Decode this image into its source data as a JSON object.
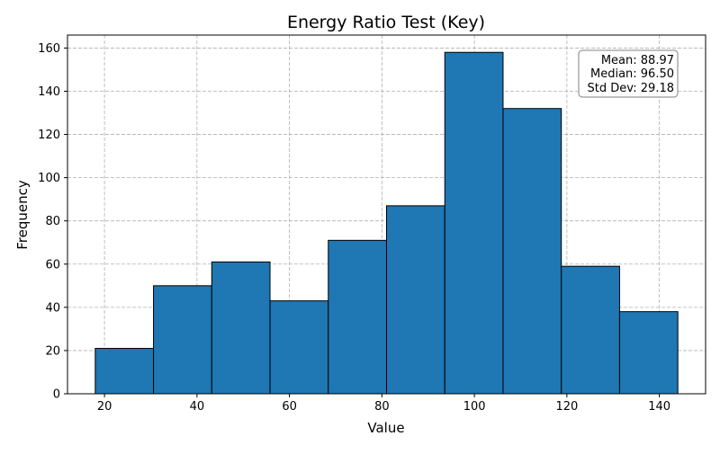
{
  "chart_data": {
    "type": "bar",
    "title": "Energy Ratio Test (Key)",
    "xlabel": "Value",
    "ylabel": "Frequency",
    "bin_edges": [
      18.0,
      30.6,
      43.2,
      55.8,
      68.4,
      81.0,
      93.6,
      106.2,
      118.8,
      131.4,
      144.0
    ],
    "values": [
      21,
      50,
      61,
      43,
      71,
      87,
      158,
      132,
      59,
      38
    ],
    "xlim": [
      12,
      150
    ],
    "ylim": [
      0,
      166
    ],
    "x_ticks": [
      20,
      40,
      60,
      80,
      100,
      120,
      140
    ],
    "y_ticks": [
      0,
      20,
      40,
      60,
      80,
      100,
      120,
      140,
      160
    ],
    "grid": true,
    "bar_color": "#1f77b4",
    "edge_color": "#000000",
    "grid_color": "#b0b0b0",
    "stats_box": {
      "position": "top-right",
      "lines": [
        "Mean: 88.97",
        "Median: 96.50",
        "Std Dev: 29.18"
      ]
    }
  }
}
